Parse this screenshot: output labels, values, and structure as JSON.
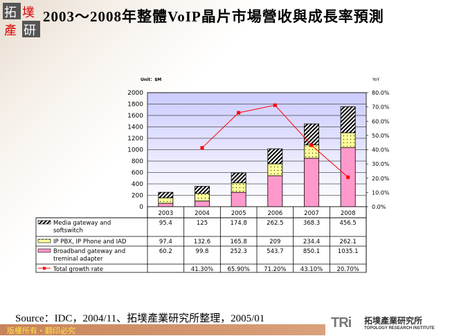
{
  "header": {
    "title": "2003～2008年整體VoIP晶片市場營收與成長率預測",
    "logo_text": "拓墣產研"
  },
  "footer": {
    "source": "Source：IDC，2004/11、拓墣產業研究所整理，2005/01",
    "copyright": "版權所有・翻印必究",
    "brand_mark": "TRi",
    "brand_cn": "拓墣產業研究所",
    "brand_en": "TOPOLOGY RESEARCH INSTITUTE"
  },
  "chart_data": {
    "type": "bar",
    "stacked": true,
    "unit_label": "Unit：$M",
    "y2_label": "YoY",
    "categories": [
      "2003",
      "2004",
      "2005",
      "2006",
      "2007",
      "2008"
    ],
    "ylim": [
      0,
      2000
    ],
    "yticks": [
      "2000",
      "1800",
      "1600",
      "1400",
      "1200",
      "1000",
      "800",
      "600",
      "400",
      "200",
      "0"
    ],
    "y2lim": [
      0,
      80
    ],
    "y2ticks": [
      "80.0%",
      "70.0%",
      "60.0%",
      "50.0%",
      "40.0%",
      "30.0%",
      "20.0%",
      "10.0%",
      "0.0%"
    ],
    "grid": true,
    "series": [
      {
        "name": "Broadband gateway and treminal adapter",
        "values": [
          60.2,
          99.8,
          252.3,
          543.7,
          850.1,
          1035.1
        ],
        "color": "#ff99cc",
        "pattern": "solid"
      },
      {
        "name": "IP PBX, IP Phone and IAD",
        "values": [
          97.4,
          132.6,
          165.8,
          209,
          234.4,
          262.1
        ],
        "color": "#ffff99",
        "pattern": "dots"
      },
      {
        "name": "Media gateway and softswitch",
        "values": [
          95.4,
          125,
          174.8,
          262.5,
          368.3,
          456.5
        ],
        "color": "#ffffff",
        "pattern": "diagonal"
      }
    ],
    "line": {
      "name": "Total growth rate",
      "axis": "right",
      "color": "#ff0000",
      "values": [
        null,
        41.3,
        65.9,
        71.2,
        43.1,
        20.7
      ],
      "labels": [
        "",
        "41.30%",
        "65.90%",
        "71.20%",
        "43.10%",
        "20.70%"
      ]
    },
    "table_rows": [
      {
        "name": "Media gateway and softswitch",
        "cells": [
          "95.4",
          "125",
          "174.8",
          "262.5",
          "368.3",
          "456.5"
        ]
      },
      {
        "name": "IP PBX, IP Phone and IAD",
        "cells": [
          "97.4",
          "132.6",
          "165.8",
          "209",
          "234.4",
          "262.1"
        ]
      },
      {
        "name": "Broadband gateway and treminal adapter",
        "cells": [
          "60.2",
          "99.8",
          "252.3",
          "543.7",
          "850.1",
          "1035.1"
        ]
      },
      {
        "name": "Total growth rate",
        "cells": [
          "",
          "41.30%",
          "65.90%",
          "71.20%",
          "43.10%",
          "20.70%"
        ]
      }
    ]
  }
}
